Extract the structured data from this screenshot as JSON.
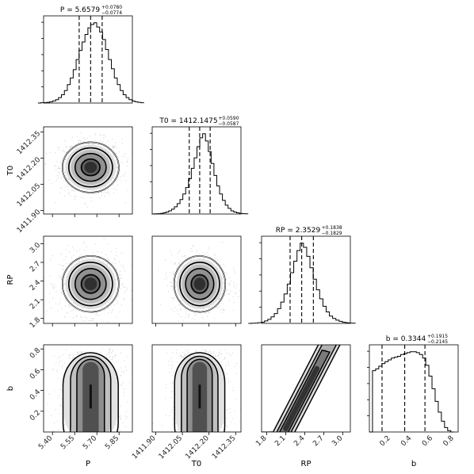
{
  "chart_data": {
    "type": "corner",
    "parameters": [
      {
        "key": "P",
        "label": "P",
        "median": 5.6579,
        "err_plus": 0.078,
        "err_minus": 0.0774,
        "title": "P = 5.6579",
        "title_plus": "+0.0780",
        "title_minus": "−0.0774",
        "range": [
          5.34,
          5.94
        ],
        "ticks": [
          5.4,
          5.55,
          5.7,
          5.85
        ],
        "tick_labels": [
          "5.40",
          "5.55",
          "5.70",
          "5.85"
        ]
      },
      {
        "key": "T0",
        "label": "T0",
        "median": 1412.1475,
        "err_plus": 0.059,
        "err_minus": 0.0587,
        "title": "T0 = 1412.1475",
        "title_plus": "+0.0590",
        "title_minus": "−0.0587",
        "range": [
          1411.88,
          1412.38
        ],
        "ticks": [
          1411.9,
          1412.05,
          1412.2,
          1412.35
        ],
        "tick_labels": [
          "1411.90",
          "1412.05",
          "1412.20",
          "1412.35"
        ]
      },
      {
        "key": "RP",
        "label": "RP",
        "median": 2.3529,
        "err_plus": 0.1838,
        "err_minus": 0.1829,
        "title": "RP = 2.3529",
        "title_plus": "+0.1838",
        "title_minus": "−0.1829",
        "range": [
          1.72,
          3.12
        ],
        "ticks": [
          1.8,
          2.1,
          2.4,
          2.7,
          3.0
        ],
        "tick_labels": [
          "1.8",
          "2.1",
          "2.4",
          "2.7",
          "3.0"
        ]
      },
      {
        "key": "b",
        "label": "b",
        "median": 0.3344,
        "err_plus": 0.1915,
        "err_minus": 0.2145,
        "title": "b = 0.3344",
        "title_plus": "+0.1915",
        "title_minus": "−0.2145",
        "range": [
          0.0,
          0.84
        ],
        "ticks": [
          0.2,
          0.4,
          0.6,
          0.8
        ],
        "tick_labels": [
          "0.2",
          "0.4",
          "0.6",
          "0.8"
        ]
      }
    ],
    "histograms": {
      "P": [
        0,
        0.3,
        0.5,
        0.8,
        1.5,
        2.5,
        4,
        6.5,
        10,
        15,
        22,
        30,
        40,
        52,
        63,
        73,
        82,
        90,
        94,
        96,
        91,
        85,
        76,
        64,
        52,
        41,
        30,
        22,
        15,
        10,
        6.5,
        4,
        2.5,
        1.5,
        0.8,
        0.4
      ],
      "T0": [
        0,
        0.2,
        0.4,
        0.8,
        1.5,
        2.5,
        4,
        6,
        9,
        13,
        18,
        25,
        33,
        44,
        57,
        70,
        84,
        95,
        100,
        91,
        78,
        63,
        48,
        35,
        25,
        17,
        11,
        7,
        4,
        2.5,
        1.5,
        0.8,
        0.4,
        0.2
      ],
      "RP": [
        0,
        0.2,
        0.4,
        0.8,
        1.5,
        3,
        5,
        8,
        12,
        18,
        26,
        36,
        48,
        62,
        76,
        89,
        98,
        93,
        82,
        68,
        54,
        41,
        30,
        21,
        14,
        9,
        6,
        4,
        2.5,
        1.5,
        0.8,
        0.4,
        0.2
      ],
      "b": [
        0,
        68,
        70,
        73,
        76,
        78,
        80,
        82,
        83,
        84,
        86,
        87,
        88,
        89,
        89,
        88,
        86,
        82,
        74,
        62,
        48,
        34,
        22,
        12,
        5,
        1.5,
        0
      ]
    },
    "quantile_lines": "16th, 50th and 84th percentiles (dashed)",
    "contours": "2D KDE density contours with greyscale histogram and scatter of samples",
    "grid": false
  }
}
